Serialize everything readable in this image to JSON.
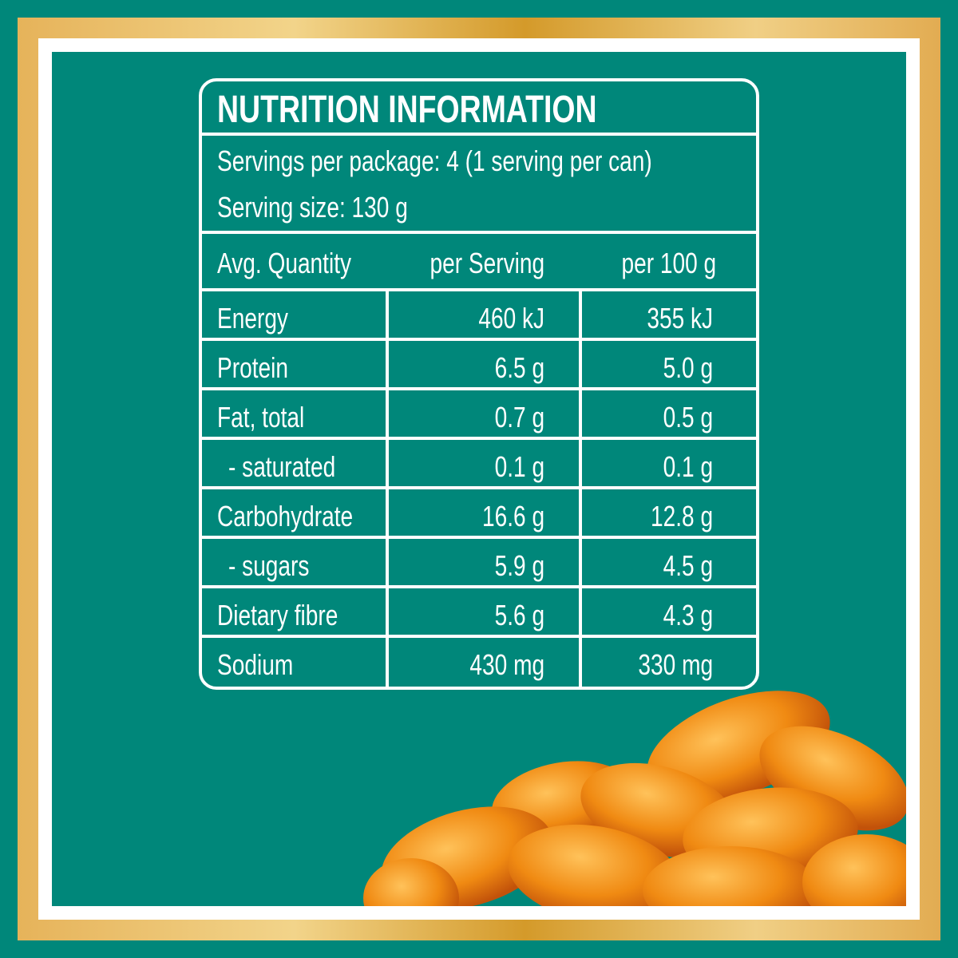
{
  "header": {
    "title": "NUTRITION INFORMATION",
    "servings": "Servings per package: 4 (1 serving per can)",
    "serving_size": "Serving size: 130 g"
  },
  "table": {
    "columns": [
      "Avg. Quantity",
      "per Serving",
      "per 100 g"
    ],
    "rows": [
      [
        "Energy",
        "460 kJ",
        "355 kJ"
      ],
      [
        "Protein",
        "6.5 g",
        "5.0 g"
      ],
      [
        "Fat, total",
        "0.7 g",
        "0.5 g"
      ],
      [
        "- saturated",
        "0.1 g",
        "0.1 g"
      ],
      [
        "Carbohydrate",
        "16.6 g",
        "12.8 g"
      ],
      [
        "- sugars",
        "5.9 g",
        "4.5 g"
      ],
      [
        "Dietary fibre",
        "5.6 g",
        "4.3 g"
      ],
      [
        "Sodium",
        "430 mg",
        "330 mg"
      ]
    ]
  }
}
